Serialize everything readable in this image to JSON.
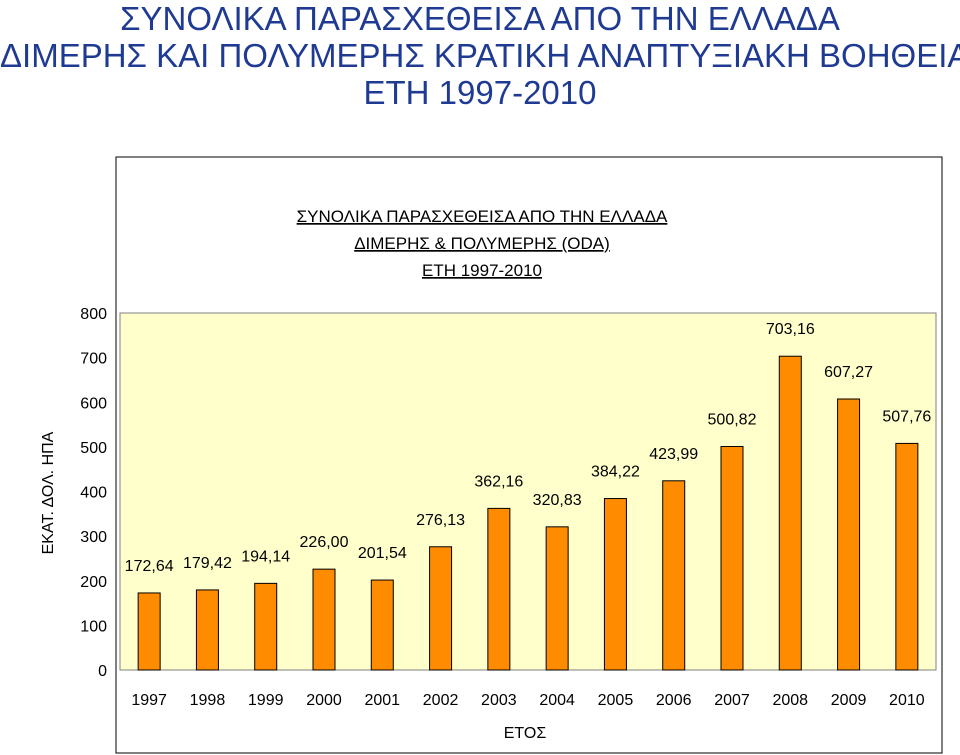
{
  "page_title": [
    "ΣΥΝΟΛΙΚΑ ΠΑΡΑΣΧΕΘΕΙΣΑ ΑΠΟ ΤΗΝ ΕΛΛΑΔΑ",
    "ΔΙΜΕΡΗΣ ΚΑΙ ΠΟΛΥΜΕΡΗΣ ΚΡΑΤΙΚΗ ΑΝΑΠΤΥΞΙΑΚΗ ΒΟΗΘΕΙΑ",
    "ΕΤΗ 1997-2010"
  ],
  "colors": {
    "page_title": "#1f3a93",
    "plot_background": "#ffffcc",
    "bar_fill": "#ff8c00",
    "bar_stroke": "#000000"
  },
  "chart_data": {
    "type": "bar",
    "title": [
      "ΣΥΝΟΛΙΚΑ ΠΑΡΑΣΧΕΘΕΙΣΑ ΑΠΟ ΤΗΝ ΕΛΛΑΔΑ",
      "ΔΙΜΕΡΗΣ & ΠΟΛΥΜΕΡΗΣ (ODA)",
      "ΕΤΗ 1997-2010"
    ],
    "xlabel": "ΕΤΟΣ",
    "ylabel": "ΕΚΑΤ. ΔΟΛ. ΗΠΑ",
    "categories": [
      "1997",
      "1998",
      "1999",
      "2000",
      "2001",
      "2002",
      "2003",
      "2004",
      "2005",
      "2006",
      "2007",
      "2008",
      "2009",
      "2010"
    ],
    "values": [
      172.64,
      179.42,
      194.14,
      226.0,
      201.54,
      276.13,
      362.16,
      320.83,
      384.22,
      423.99,
      500.82,
      703.16,
      607.27,
      507.76
    ],
    "data_labels": [
      "172,64",
      "179,42",
      "194,14",
      "226,00",
      "201,54",
      "276,13",
      "362,16",
      "320,83",
      "384,22",
      "423,99",
      "500,82",
      "703,16",
      "607,27",
      "507,76"
    ],
    "y_ticks": [
      "0",
      "100",
      "200",
      "300",
      "400",
      "500",
      "600",
      "700",
      "800"
    ],
    "ylim": [
      0,
      800
    ],
    "grid": false,
    "legend": "none"
  }
}
